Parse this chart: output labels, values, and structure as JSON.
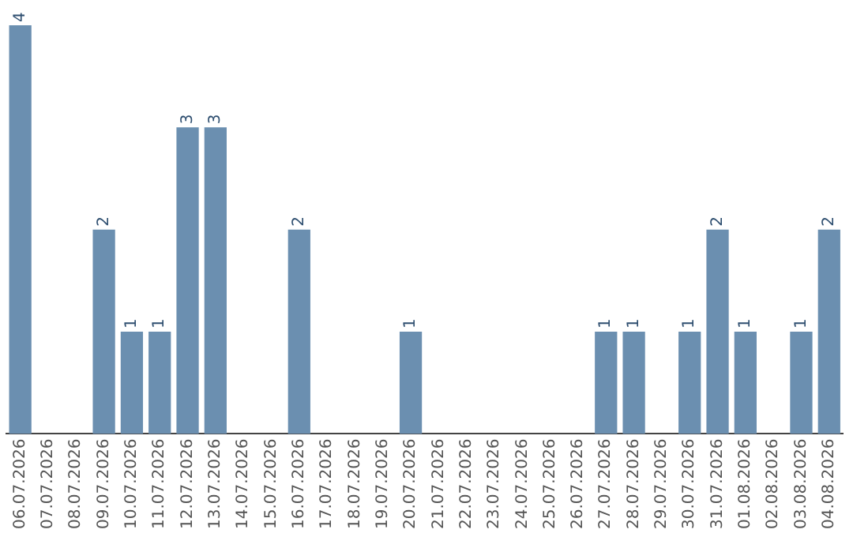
{
  "chart_data": {
    "type": "bar",
    "categories": [
      "06.07.2026",
      "07.07.2026",
      "08.07.2026",
      "09.07.2026",
      "10.07.2026",
      "11.07.2026",
      "12.07.2026",
      "13.07.2026",
      "14.07.2026",
      "15.07.2026",
      "16.07.2026",
      "17.07.2026",
      "18.07.2026",
      "19.07.2026",
      "20.07.2026",
      "21.07.2026",
      "22.07.2026",
      "23.07.2026",
      "24.07.2026",
      "25.07.2026",
      "26.07.2026",
      "27.07.2026",
      "28.07.2026",
      "29.07.2026",
      "30.07.2026",
      "31.07.2026",
      "01.08.2026",
      "02.08.2026",
      "03.08.2026",
      "04.08.2026"
    ],
    "values": [
      4,
      0,
      0,
      2,
      1,
      1,
      3,
      3,
      0,
      0,
      2,
      0,
      0,
      0,
      1,
      0,
      0,
      0,
      0,
      0,
      0,
      1,
      1,
      0,
      1,
      2,
      1,
      0,
      1,
      2
    ],
    "value_labels": [
      "4",
      null,
      null,
      "2",
      "1",
      "1",
      "3",
      "3",
      null,
      null,
      "2",
      null,
      null,
      null,
      "1",
      null,
      null,
      null,
      null,
      null,
      null,
      "1",
      "1",
      null,
      "1",
      "2",
      "1",
      null,
      "1",
      "2"
    ],
    "color": "#6b8fb0",
    "grid": false,
    "legend": false
  }
}
